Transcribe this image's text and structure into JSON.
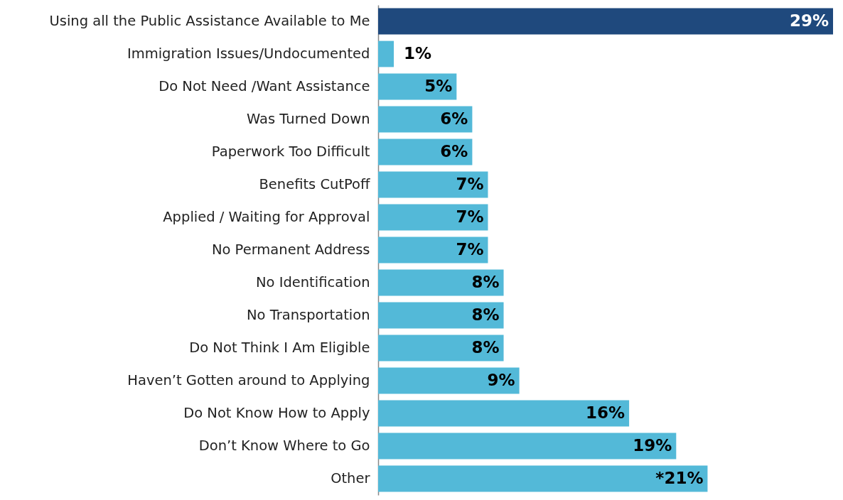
{
  "chart_data": {
    "type": "bar",
    "orientation": "horizontal",
    "categories": [
      "Using all the Public Assistance Available to Me",
      "Immigration Issues/Undocumented",
      "Do Not Need /Want Assistance",
      "Was Turned Down",
      "Paperwork Too Difficult",
      "Benefits CutPoff",
      "Applied / Waiting for Approval",
      "No Permanent Address",
      "No Identification",
      "No Transportation",
      "Do Not Think I Am Eligible",
      "Haven’t Gotten around to Applying",
      "Do Not Know How to Apply",
      "Don’t Know Where to Go",
      "Other"
    ],
    "values": [
      29,
      1,
      5,
      6,
      6,
      7,
      7,
      7,
      8,
      8,
      8,
      9,
      16,
      19,
      21
    ],
    "value_labels": [
      "29%",
      "1%",
      "5%",
      "6%",
      "6%",
      "7%",
      "7%",
      "7%",
      "8%",
      "8%",
      "8%",
      "9%",
      "16%",
      "19%",
      "*21%"
    ],
    "colors": [
      "#1f497d",
      "#53b9d8",
      "#53b9d8",
      "#53b9d8",
      "#53b9d8",
      "#53b9d8",
      "#53b9d8",
      "#53b9d8",
      "#53b9d8",
      "#53b9d8",
      "#53b9d8",
      "#53b9d8",
      "#53b9d8",
      "#53b9d8",
      "#53b9d8"
    ],
    "stacked": false
  }
}
